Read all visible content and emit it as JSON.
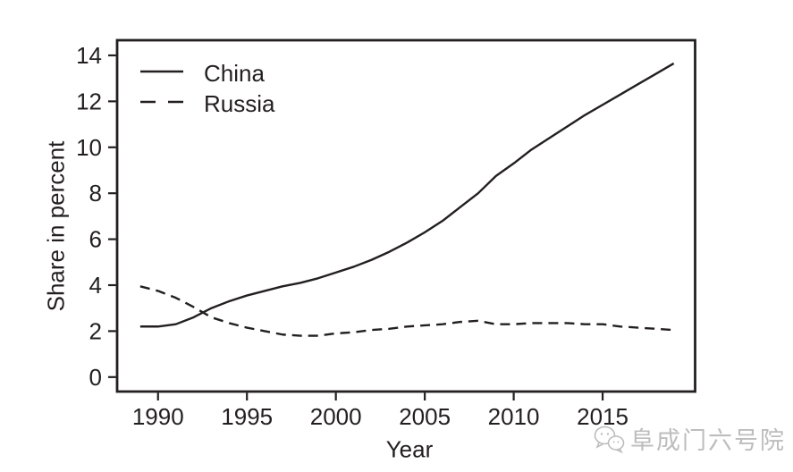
{
  "figure": {
    "ink_color": "#231f20",
    "background": "#ffffff",
    "watermark": {
      "icon": "wechat-bubbles-icon",
      "text": "阜成门六号院",
      "color": "#bdbdbd"
    }
  },
  "chart_data": {
    "type": "line",
    "title": "",
    "xlabel": "Year",
    "ylabel": "Share in percent",
    "grid": false,
    "legend_position": "top-left",
    "xlim": [
      1987.7,
      2020.2
    ],
    "ylim": [
      -0.63,
      14.66
    ],
    "x_ticks": [
      1990,
      1995,
      2000,
      2005,
      2010,
      2015
    ],
    "y_ticks": [
      0,
      2,
      4,
      6,
      8,
      10,
      12,
      14
    ],
    "x": [
      1989,
      1990,
      1991,
      1992,
      1993,
      1994,
      1995,
      1996,
      1997,
      1998,
      1999,
      2000,
      2001,
      2002,
      2003,
      2004,
      2005,
      2006,
      2007,
      2008,
      2009,
      2010,
      2011,
      2012,
      2013,
      2014,
      2015,
      2016,
      2017,
      2018,
      2019
    ],
    "series": [
      {
        "name": "China",
        "line_style": "solid",
        "color": "#231f20",
        "values": [
          2.2,
          2.2,
          2.3,
          2.6,
          3.0,
          3.3,
          3.55,
          3.75,
          3.95,
          4.1,
          4.3,
          4.55,
          4.8,
          5.1,
          5.45,
          5.85,
          6.3,
          6.8,
          7.4,
          8.0,
          8.75,
          9.3,
          9.9,
          10.4,
          10.9,
          11.4,
          11.85,
          12.3,
          12.75,
          13.2,
          13.65
        ]
      },
      {
        "name": "Russia",
        "line_style": "dashed",
        "color": "#231f20",
        "values": [
          3.95,
          3.75,
          3.45,
          3.05,
          2.6,
          2.35,
          2.15,
          2.0,
          1.85,
          1.8,
          1.8,
          1.9,
          1.95,
          2.05,
          2.1,
          2.2,
          2.25,
          2.3,
          2.4,
          2.45,
          2.3,
          2.3,
          2.35,
          2.35,
          2.35,
          2.3,
          2.3,
          2.2,
          2.15,
          2.1,
          2.05
        ]
      }
    ]
  }
}
